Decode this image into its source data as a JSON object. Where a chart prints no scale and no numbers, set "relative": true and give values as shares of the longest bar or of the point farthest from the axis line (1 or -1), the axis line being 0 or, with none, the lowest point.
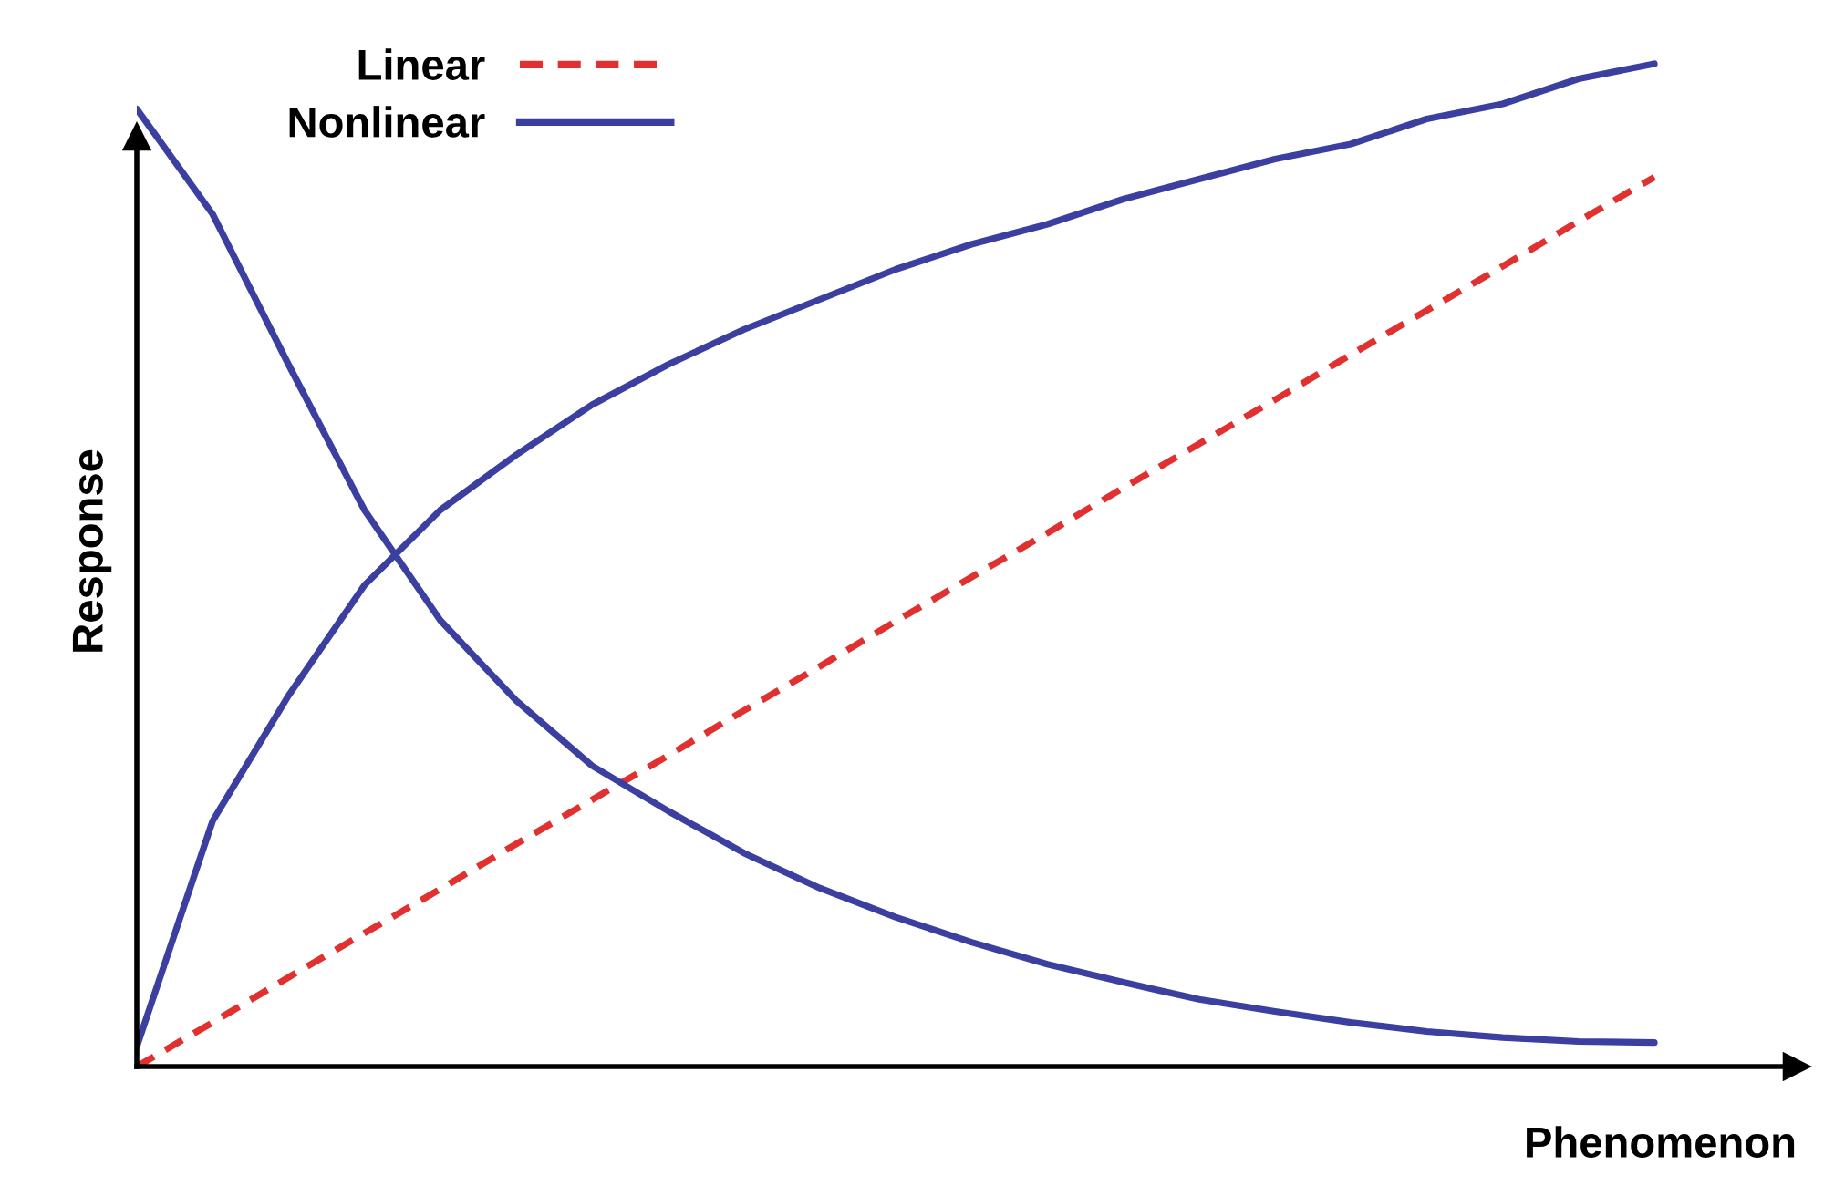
{
  "chart_data": {
    "type": "line",
    "relative": true,
    "xlabel": "Phenomenon",
    "ylabel": "Response",
    "categories": [
      null,
      null,
      null,
      null,
      null,
      null,
      null,
      null,
      null,
      null,
      null,
      null,
      null,
      null,
      null,
      null,
      null,
      null,
      null,
      null,
      null
    ],
    "series": [
      {
        "name": "Linear",
        "color": "#e03030",
        "line_style": "dashed",
        "values": [
          0,
          0.044,
          0.089,
          0.133,
          0.177,
          0.222,
          0.266,
          0.31,
          0.355,
          0.399,
          0.444,
          0.488,
          0.532,
          0.577,
          0.621,
          0.665,
          0.71,
          0.754,
          0.798,
          0.843,
          0.887
        ]
      },
      {
        "name": "Nonlinear",
        "color": "#3a3fa0",
        "line_style": "solid",
        "values": [
          0.02,
          0.245,
          0.37,
          0.48,
          0.555,
          0.61,
          0.66,
          0.7,
          0.735,
          0.765,
          0.795,
          0.82,
          0.84,
          0.865,
          0.885,
          0.905,
          0.92,
          0.945,
          0.96,
          0.985,
          1.0
        ]
      },
      {
        "color": "#3a3fa0",
        "line_style": "solid",
        "values": [
          0.955,
          0.85,
          0.7,
          0.555,
          0.445,
          0.365,
          0.3,
          0.255,
          0.213,
          0.178,
          0.149,
          0.124,
          0.102,
          0.084,
          0.067,
          0.055,
          0.044,
          0.035,
          0.029,
          0.025,
          0.024
        ]
      }
    ],
    "legend": "top left",
    "grid": false,
    "marker": "none"
  }
}
